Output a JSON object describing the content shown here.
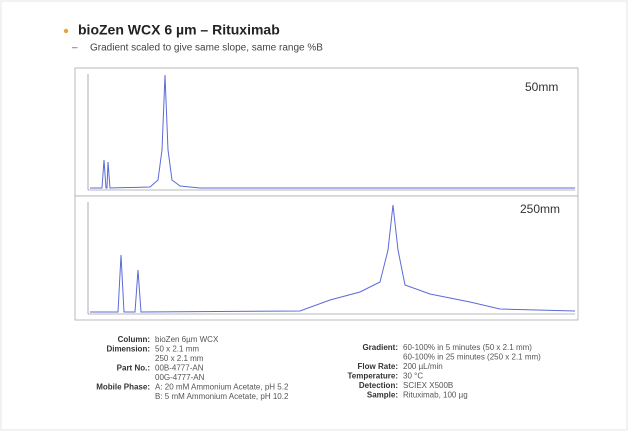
{
  "header": {
    "title": "bioZen WCX 6 µm – Rituximab",
    "bullet": "Gradient scaled to give same slope, same range %B"
  },
  "panels": [
    {
      "label": "50mm"
    },
    {
      "label": "250mm"
    }
  ],
  "conditions": {
    "left": [
      {
        "label": "Column:",
        "lines": [
          "bioZen 6µm WCX"
        ]
      },
      {
        "label": "Dimension:",
        "lines": [
          "50 x 2.1 mm",
          "250 x 2.1 mm"
        ]
      },
      {
        "label": "Part No.:",
        "lines": [
          "00B-4777-AN",
          "00G-4777-AN"
        ]
      },
      {
        "label": "Mobile Phase:",
        "lines": [
          "A: 20 mM Ammonium Acetate, pH 5.2",
          "B: 5 mM Ammonium Acetate, pH 10.2"
        ]
      }
    ],
    "right": [
      {
        "label": "Gradient:",
        "lines": [
          "60-100% in 5 minutes (50 x 2.1 mm)",
          "60-100% in 25 minutes (250 x 2.1 mm)"
        ]
      },
      {
        "label": "Flow Rate:",
        "lines": [
          "200 µL/min"
        ]
      },
      {
        "label": "Temperature:",
        "lines": [
          "30 °C"
        ]
      },
      {
        "label": "Detection:",
        "lines": [
          "SCIEX X500B"
        ]
      },
      {
        "label": "Sample:",
        "lines": [
          "Rituximab, 100 µg"
        ]
      }
    ]
  }
}
